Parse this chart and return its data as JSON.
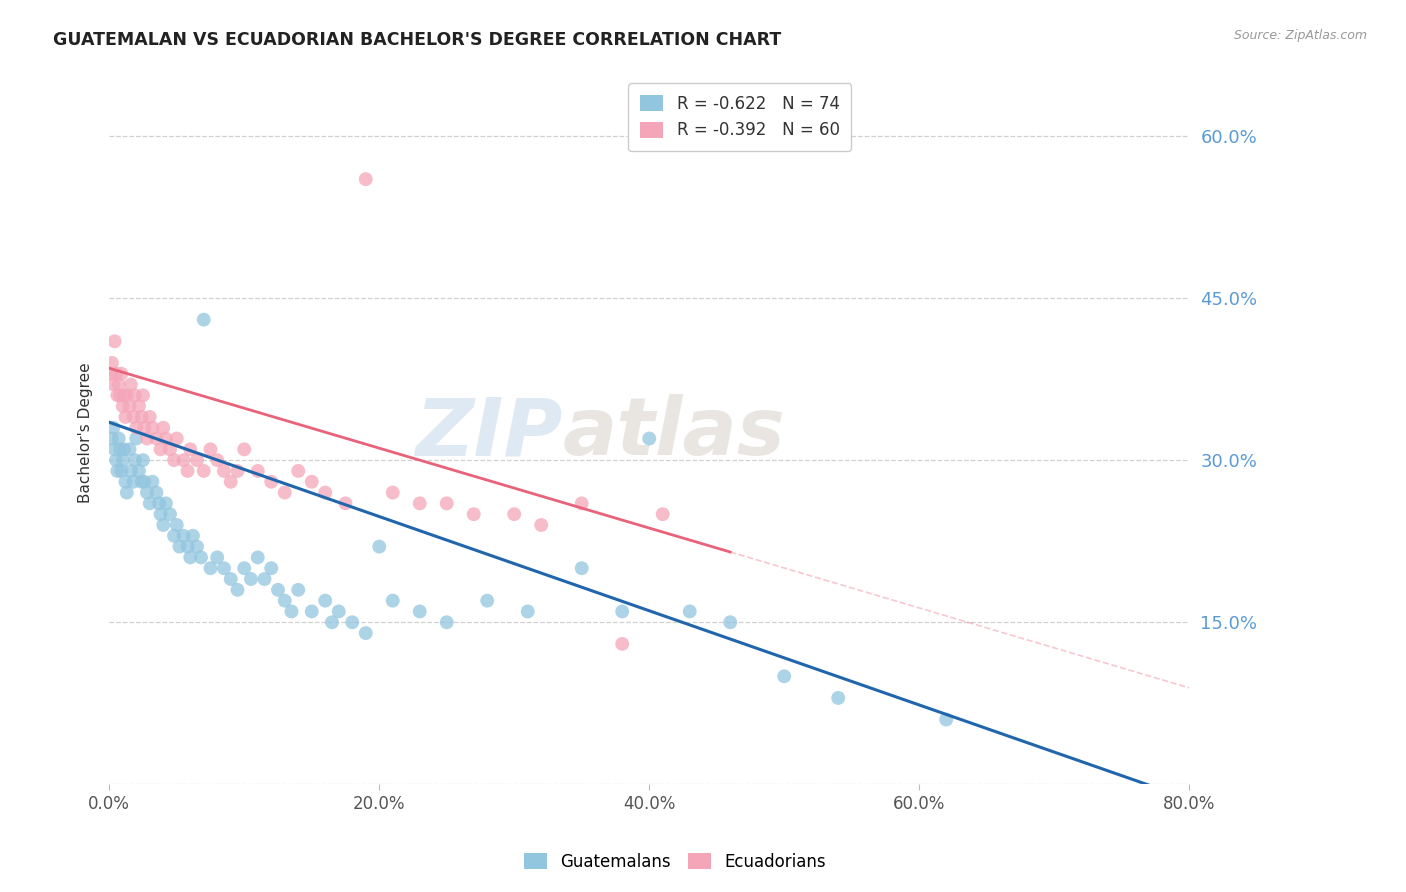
{
  "title": "GUATEMALAN VS ECUADORIAN BACHELOR'S DEGREE CORRELATION CHART",
  "source": "Source: ZipAtlas.com",
  "ylabel": "Bachelor's Degree",
  "legend_r1": "-0.622",
  "legend_n1": "74",
  "legend_r2": "-0.392",
  "legend_n2": "60",
  "color_blue": "#92c5de",
  "color_pink": "#f4a6b8",
  "color_blue_line": "#2166ac",
  "color_pink_line": "#e8637a",
  "xmin": 0.0,
  "xmax": 0.8,
  "ymin": 0.0,
  "ymax": 0.65,
  "yticks": [
    0.0,
    0.15,
    0.3,
    0.45,
    0.6
  ],
  "xticks": [
    0.0,
    0.2,
    0.4,
    0.6,
    0.8
  ],
  "background_color": "#ffffff",
  "grid_color": "#d0d0d0",
  "right_axis_color": "#5b9bd5",
  "blue_line_x0": 0.0,
  "blue_line_y0": 0.335,
  "blue_line_x1": 0.78,
  "blue_line_y1": -0.005,
  "pink_line_x0": 0.0,
  "pink_line_y0": 0.385,
  "pink_line_x1": 0.46,
  "pink_line_y1": 0.215,
  "guatemalan_x": [
    0.002,
    0.003,
    0.004,
    0.005,
    0.006,
    0.007,
    0.008,
    0.009,
    0.01,
    0.011,
    0.012,
    0.013,
    0.015,
    0.016,
    0.018,
    0.019,
    0.02,
    0.022,
    0.024,
    0.025,
    0.026,
    0.028,
    0.03,
    0.032,
    0.035,
    0.037,
    0.038,
    0.04,
    0.042,
    0.045,
    0.048,
    0.05,
    0.052,
    0.055,
    0.058,
    0.06,
    0.062,
    0.065,
    0.068,
    0.07,
    0.075,
    0.08,
    0.085,
    0.09,
    0.095,
    0.1,
    0.105,
    0.11,
    0.115,
    0.12,
    0.125,
    0.13,
    0.135,
    0.14,
    0.15,
    0.16,
    0.165,
    0.17,
    0.18,
    0.19,
    0.2,
    0.21,
    0.23,
    0.25,
    0.28,
    0.31,
    0.35,
    0.38,
    0.4,
    0.43,
    0.46,
    0.5,
    0.54,
    0.62
  ],
  "guatemalan_y": [
    0.32,
    0.33,
    0.31,
    0.3,
    0.29,
    0.32,
    0.31,
    0.29,
    0.3,
    0.31,
    0.28,
    0.27,
    0.31,
    0.29,
    0.28,
    0.3,
    0.32,
    0.29,
    0.28,
    0.3,
    0.28,
    0.27,
    0.26,
    0.28,
    0.27,
    0.26,
    0.25,
    0.24,
    0.26,
    0.25,
    0.23,
    0.24,
    0.22,
    0.23,
    0.22,
    0.21,
    0.23,
    0.22,
    0.21,
    0.43,
    0.2,
    0.21,
    0.2,
    0.19,
    0.18,
    0.2,
    0.19,
    0.21,
    0.19,
    0.2,
    0.18,
    0.17,
    0.16,
    0.18,
    0.16,
    0.17,
    0.15,
    0.16,
    0.15,
    0.14,
    0.22,
    0.17,
    0.16,
    0.15,
    0.17,
    0.16,
    0.2,
    0.16,
    0.32,
    0.16,
    0.15,
    0.1,
    0.08,
    0.06
  ],
  "ecuadorian_x": [
    0.001,
    0.002,
    0.003,
    0.004,
    0.005,
    0.006,
    0.007,
    0.008,
    0.009,
    0.01,
    0.011,
    0.012,
    0.013,
    0.015,
    0.016,
    0.018,
    0.019,
    0.02,
    0.022,
    0.024,
    0.025,
    0.026,
    0.028,
    0.03,
    0.032,
    0.035,
    0.038,
    0.04,
    0.042,
    0.045,
    0.048,
    0.05,
    0.055,
    0.058,
    0.06,
    0.065,
    0.07,
    0.075,
    0.08,
    0.085,
    0.09,
    0.095,
    0.1,
    0.11,
    0.12,
    0.13,
    0.14,
    0.15,
    0.16,
    0.175,
    0.19,
    0.21,
    0.23,
    0.25,
    0.27,
    0.3,
    0.32,
    0.35,
    0.38,
    0.41
  ],
  "ecuadorian_y": [
    0.38,
    0.39,
    0.37,
    0.41,
    0.38,
    0.36,
    0.37,
    0.36,
    0.38,
    0.35,
    0.36,
    0.34,
    0.36,
    0.35,
    0.37,
    0.34,
    0.36,
    0.33,
    0.35,
    0.34,
    0.36,
    0.33,
    0.32,
    0.34,
    0.33,
    0.32,
    0.31,
    0.33,
    0.32,
    0.31,
    0.3,
    0.32,
    0.3,
    0.29,
    0.31,
    0.3,
    0.29,
    0.31,
    0.3,
    0.29,
    0.28,
    0.29,
    0.31,
    0.29,
    0.28,
    0.27,
    0.29,
    0.28,
    0.27,
    0.26,
    0.56,
    0.27,
    0.26,
    0.26,
    0.25,
    0.25,
    0.24,
    0.26,
    0.13,
    0.25
  ]
}
